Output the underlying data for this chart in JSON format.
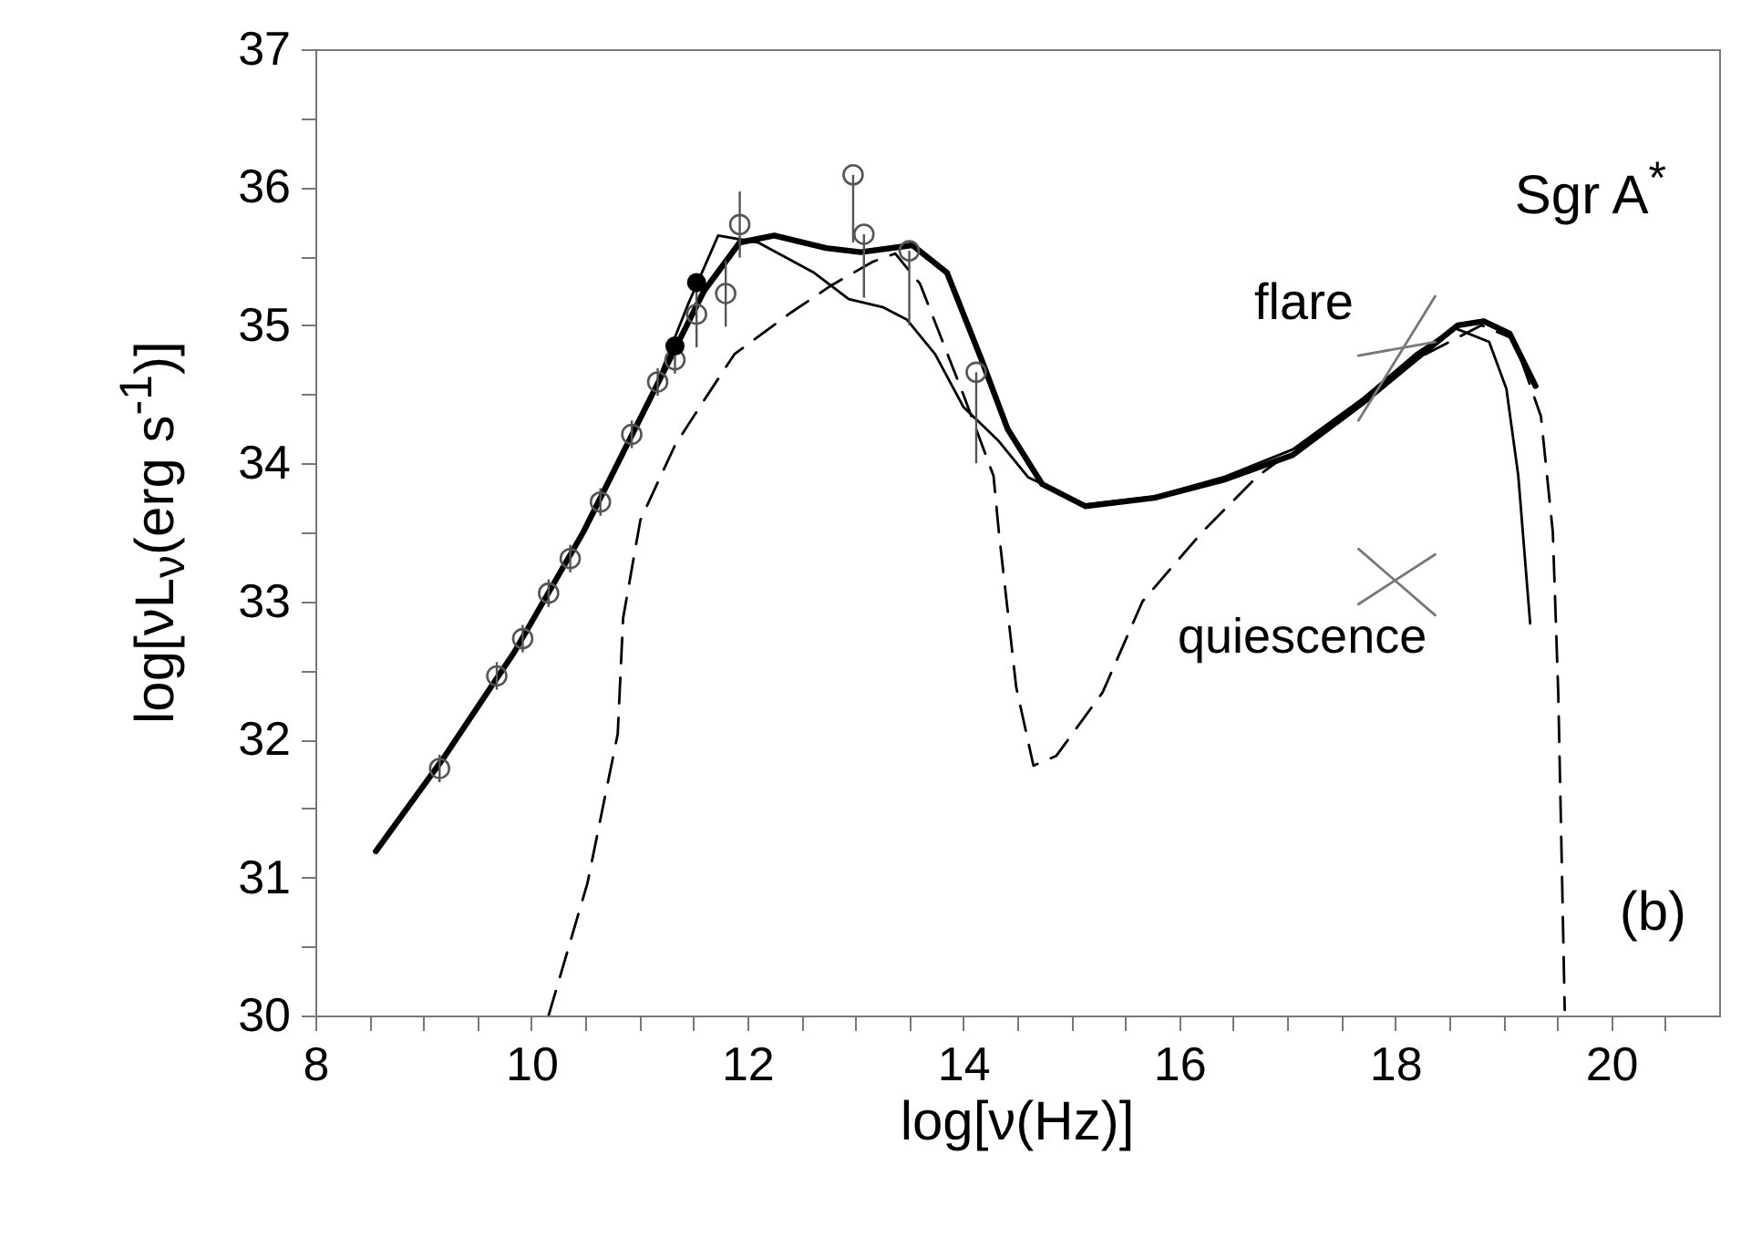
{
  "chart_data": {
    "type": "line",
    "xlabel": "log[ν(Hz)]",
    "ylabel": "log[νL$_{ν}$(erg s$^{-1}$)]",
    "annotations": [
      "Sgr A$^{*}$",
      "(b)",
      "flare",
      "quiescence"
    ],
    "xlim": [
      8,
      21
    ],
    "ylim": [
      30,
      37
    ],
    "xticks": [
      8,
      {
        "value": 8.5,
        "label": null
      },
      {
        "value": 9,
        "label": null
      },
      {
        "value": 9.5,
        "label": null
      },
      10,
      {
        "value": 10.5,
        "label": null
      },
      {
        "value": 11,
        "label": null
      },
      {
        "value": 11.5,
        "label": null
      },
      12,
      {
        "value": 12.5,
        "label": null
      },
      {
        "value": 13,
        "label": null
      },
      {
        "value": 13.5,
        "label": null
      },
      14,
      {
        "value": 14.5,
        "label": null
      },
      {
        "value": 15,
        "label": null
      },
      {
        "value": 15.5,
        "label": null
      },
      16,
      {
        "value": 16.5,
        "label": null
      },
      {
        "value": 17,
        "label": null
      },
      {
        "value": 17.5,
        "label": null
      },
      18,
      {
        "value": 18.5,
        "label": null
      },
      {
        "value": 19,
        "label": null
      },
      {
        "value": 19.5,
        "label": null
      },
      20,
      {
        "value": 20.5,
        "label": null
      }
    ],
    "yticks": [
      30,
      {
        "value": 30.5,
        "label": null
      },
      31,
      {
        "value": 31.5,
        "label": null
      },
      32,
      {
        "value": 32.5,
        "label": null
      },
      33,
      {
        "value": 33.5,
        "label": null
      },
      34,
      {
        "value": 34.5,
        "label": null
      },
      35,
      {
        "value": 35.5,
        "label": null
      },
      36,
      {
        "value": 36.5,
        "label": null
      },
      37
    ],
    "grid": false,
    "series": [
      {
        "color": "#000000",
        "x": [
          8.56,
          9.2,
          9.84,
          10.48,
          11.12,
          11.6,
          11.93,
          12.25,
          12.73,
          13.05,
          13.53,
          13.85,
          14.17,
          14.41,
          14.73,
          15.13,
          15.77,
          16.41,
          17.05,
          17.7,
          18.18,
          18.58,
          18.82,
          19.06,
          19.3
        ],
        "values": [
          31.19,
          31.88,
          32.63,
          33.5,
          34.5,
          35.25,
          35.6,
          35.65,
          35.56,
          35.53,
          35.58,
          35.38,
          34.75,
          34.25,
          33.85,
          33.69,
          33.75,
          33.88,
          34.06,
          34.44,
          34.75,
          35.0,
          35.03,
          34.94,
          34.56
        ]
      },
      {
        "color": "#000000",
        "x": [
          8.56,
          9.2,
          9.84,
          10.48,
          11.12,
          11.45,
          11.73,
          12.1,
          12.62,
          12.94,
          13.26,
          13.48,
          13.74,
          14.0,
          14.33,
          14.6,
          15.13,
          15.77,
          16.41,
          17.05,
          17.7,
          18.2,
          18.55,
          18.87,
          19.03,
          19.14,
          19.25
        ],
        "values": [
          31.19,
          31.88,
          32.63,
          33.5,
          34.5,
          35.15,
          35.65,
          35.6,
          35.38,
          35.19,
          35.13,
          35.04,
          34.79,
          34.41,
          34.16,
          33.9,
          33.7,
          33.76,
          33.9,
          34.1,
          34.47,
          34.8,
          34.98,
          34.88,
          34.54,
          33.91,
          32.84
        ]
      },
      {
        "color": "#000000",
        "line_style": "dashed",
        "x": [
          10.16,
          10.52,
          10.8,
          10.85,
          11.01,
          11.33,
          11.56,
          11.88,
          12.4,
          12.78,
          13.16,
          13.37,
          13.6,
          14.0,
          14.28,
          14.33,
          14.49,
          14.65,
          14.86,
          15.29,
          15.66,
          16.21,
          16.73,
          17.17,
          17.7,
          18.18,
          18.8,
          19.1,
          19.35,
          19.46,
          19.51,
          19.54,
          19.57
        ],
        "values": [
          30.0,
          30.96,
          32.04,
          32.88,
          33.59,
          34.13,
          34.41,
          34.79,
          35.09,
          35.29,
          35.46,
          35.52,
          35.3,
          34.5,
          33.91,
          33.5,
          32.38,
          31.81,
          31.88,
          32.34,
          33.0,
          33.5,
          33.91,
          34.16,
          34.44,
          34.75,
          35.0,
          34.9,
          34.34,
          33.5,
          32.34,
          31.21,
          30.04
        ]
      },
      {
        "type": "scatter",
        "color": "#555555",
        "marker": "circle",
        "x": [
          9.15,
          9.68,
          9.92,
          10.16,
          10.36,
          10.64,
          10.93,
          11.17,
          11.33,
          11.53,
          11.8,
          11.93
        ],
        "values": [
          31.79,
          32.46,
          32.73,
          33.06,
          33.31,
          33.72,
          34.21,
          34.59,
          34.75,
          35.08,
          35.23,
          35.73
        ],
        "errors": [
          0.1,
          0.1,
          0.1,
          0.1,
          0.1,
          0.1,
          0.1,
          0.1,
          0.1,
          0.24,
          0.24,
          0.24
        ]
      },
      {
        "type": "scatter",
        "color": "#000000",
        "marker": "circle",
        "x": [
          11.33,
          11.53
        ],
        "values": [
          34.85,
          35.31
        ]
      },
      {
        "type": "scatter",
        "color": "#555555",
        "marker": "circle",
        "x": [
          12.98,
          13.08,
          13.5,
          14.12
        ],
        "values": [
          36.09,
          35.66,
          35.54,
          34.66
        ],
        "errors": [
          [
            35.6,
            36.09
          ],
          [
            35.2,
            35.66
          ],
          [
            35.0,
            35.54
          ],
          [
            34.0,
            34.66
          ]
        ]
      },
      {
        "color": "#777777",
        "x": [
          17.66,
          18.37
        ],
        "values": [
          34.31,
          35.21
        ]
      },
      {
        "color": "#777777",
        "x": [
          17.66,
          18.37
        ],
        "values": [
          34.78,
          34.88
        ]
      },
      {
        "color": "#777777",
        "x": [
          17.66,
          18.37
        ],
        "values": [
          32.98,
          33.34
        ]
      },
      {
        "color": "#777777",
        "x": [
          17.66,
          18.37
        ],
        "values": [
          33.38,
          32.9
        ]
      }
    ]
  }
}
